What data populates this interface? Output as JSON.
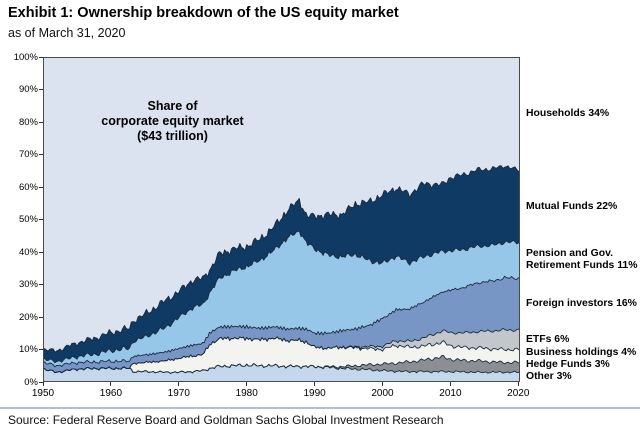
{
  "header": {
    "title": "Exhibit 1: Ownership breakdown of the US equity market",
    "subtitle": "as of March 31, 2020"
  },
  "source_line": "Source: Federal Reserve Board and Goldman Sachs Global Investment Research",
  "chart_data": {
    "type": "area",
    "stacked": true,
    "title": "Exhibit 1: Ownership breakdown of the US equity market",
    "annotation": "Share of\ncorporate equity market\n($43 trillion)",
    "plot_bg": "#dbe3f0",
    "line_color": "#1c2b3c",
    "border_color": "#4a4a4a",
    "x_axis": {
      "range": [
        1950,
        2020.25
      ],
      "ticks": [
        1950,
        1960,
        1970,
        1980,
        1990,
        2000,
        2010,
        2020
      ]
    },
    "y_axis": {
      "range": [
        0,
        100
      ],
      "tick_step": 10,
      "tick_suffix": "%"
    },
    "years": [
      1950,
      1952,
      1955,
      1958,
      1960,
      1962.9,
      1963.1,
      1965,
      1968,
      1970,
      1972,
      1973.6,
      1974.6,
      1976,
      1978,
      1980,
      1982,
      1984,
      1986,
      1987.8,
      1988.8,
      1990,
      1992,
      1994,
      1996,
      1998,
      2000,
      2002,
      2004,
      2006,
      2008.8,
      2010,
      2012,
      2014,
      2016,
      2018,
      2020.25
    ],
    "series": [
      {
        "name": "other",
        "label": "Other 3%",
        "pct_2020": 3,
        "color": "#c3d8ec",
        "values": [
          4.0,
          3.0,
          4.0,
          4.2,
          4.2,
          4.2,
          3.2,
          3.2,
          3.0,
          3.0,
          3.2,
          3.5,
          4.2,
          4.8,
          5.0,
          5.2,
          5.0,
          5.0,
          4.8,
          4.8,
          4.8,
          4.7,
          4.5,
          4.2,
          4.0,
          3.8,
          3.5,
          3.3,
          3.2,
          3.2,
          3.2,
          3.2,
          3.1,
          3.0,
          3.0,
          3.0,
          3.0
        ]
      },
      {
        "name": "hedge-funds",
        "label": "Hedge Funds 3%",
        "pct_2020": 3,
        "color": "#8b8e92",
        "values": [
          0,
          0,
          0,
          0,
          0,
          0,
          0,
          0,
          0,
          0,
          0,
          0,
          0,
          0,
          0,
          0,
          0,
          0,
          0,
          0,
          0,
          0,
          0.2,
          0.5,
          1.0,
          1.5,
          2.0,
          2.5,
          3.0,
          3.5,
          4.5,
          3.8,
          3.5,
          3.5,
          3.2,
          3.0,
          3.0
        ]
      },
      {
        "name": "business-holdings",
        "label": "Business holdings 4%",
        "pct_2020": 4,
        "color": "#f3f4ef",
        "values": [
          0,
          0,
          0,
          0,
          0,
          0,
          2.5,
          2.8,
          3.5,
          4.3,
          4.8,
          5.0,
          7.5,
          8.5,
          8.5,
          8.2,
          8.0,
          8.5,
          8.0,
          8.0,
          7.5,
          6.0,
          5.7,
          6.0,
          5.5,
          5.0,
          4.5,
          5.5,
          4.5,
          4.3,
          4.5,
          4.2,
          4.0,
          4.0,
          4.0,
          4.0,
          4.0
        ]
      },
      {
        "name": "etfs",
        "label": "ETFs 6%",
        "pct_2020": 6,
        "color": "#c3c7cb",
        "values": [
          0,
          0,
          0,
          0,
          0,
          0,
          0,
          0,
          0,
          0,
          0,
          0,
          0,
          0,
          0,
          0,
          0,
          0,
          0,
          0,
          0,
          0,
          0,
          0.1,
          0.3,
          0.6,
          1.0,
          1.4,
          1.8,
          2.5,
          3.5,
          4.0,
          4.5,
          5.0,
          5.5,
          6.0,
          6.0
        ]
      },
      {
        "name": "foreign-investors",
        "label": "Foreign investors 16%",
        "pct_2020": 16,
        "color": "#7795c5",
        "values": [
          2.0,
          2.0,
          2.0,
          2.0,
          2.2,
          2.2,
          2.2,
          2.3,
          2.7,
          3.0,
          3.3,
          3.4,
          3.5,
          3.6,
          3.6,
          3.6,
          3.5,
          3.5,
          3.5,
          3.7,
          4.0,
          4.3,
          4.6,
          5.0,
          5.5,
          6.5,
          8.5,
          9.5,
          10.0,
          11.0,
          12.0,
          13.0,
          14.0,
          15.0,
          15.3,
          16.0,
          16.0
        ]
      },
      {
        "name": "pension-gov-retirement-funds",
        "label": "Pension and Gov. Retirement Funds 11%",
        "pct_2020": 11,
        "color": "#96c7e9",
        "values": [
          1.0,
          1.3,
          1.8,
          2.5,
          3.3,
          4.0,
          4.5,
          5.5,
          7.5,
          9.5,
          11.5,
          12.0,
          12.5,
          15.0,
          17.0,
          18.5,
          21.0,
          23.5,
          28.0,
          30.0,
          26.5,
          26.0,
          24.0,
          22.7,
          23.0,
          20.0,
          17.0,
          16.5,
          14.2,
          14.0,
          12.5,
          12.2,
          11.7,
          11.3,
          11.0,
          11.0,
          11.0
        ]
      },
      {
        "name": "mutual-funds",
        "label": "Mutual Funds 22%",
        "pct_2020": 22,
        "color": "#0e3a63",
        "values": [
          3.0,
          3.3,
          4.2,
          5.0,
          5.5,
          6.2,
          6.3,
          7.0,
          8.3,
          8.0,
          8.5,
          8.0,
          7.0,
          7.5,
          6.8,
          6.2,
          6.5,
          7.2,
          8.5,
          9.5,
          8.3,
          10.0,
          12.5,
          13.0,
          15.5,
          18.0,
          21.0,
          21.0,
          21.0,
          22.5,
          20.5,
          22.5,
          23.0,
          23.5,
          23.5,
          23.5,
          22.0
        ]
      },
      {
        "name": "households",
        "label": "Households 34%",
        "pct_2020": 34,
        "color": "#dbe3f0",
        "remainder": true,
        "values": null
      }
    ]
  }
}
